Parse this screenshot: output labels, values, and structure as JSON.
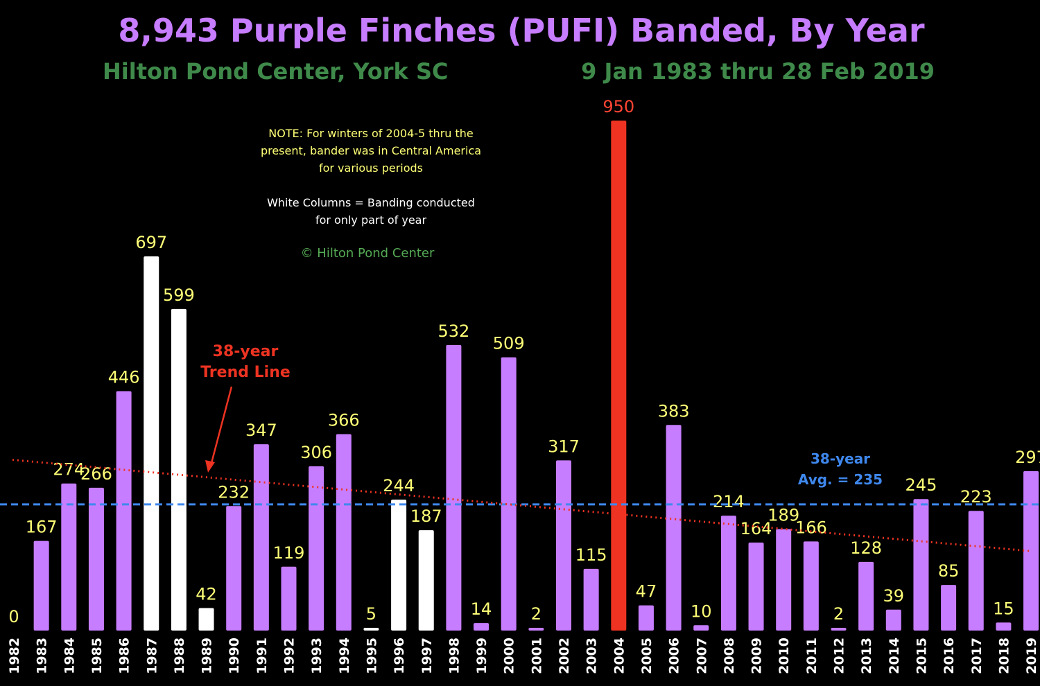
{
  "title": "8,943 Purple Finches (PUFI) Banded, By Year",
  "subtitle_left": "Hilton Pond Center, York SC",
  "subtitle_right": "9 Jan 1983 thru 28 Feb 2019",
  "note_lines": [
    "NOTE: For winters of 2004-5 thru the",
    "present, bander was in Central America",
    "for various periods",
    "",
    "White Columns = Banding conducted",
    "for only part of year"
  ],
  "copyright": "© Hilton Pond Center",
  "trend_label": [
    "38-year",
    "Trend Line"
  ],
  "avg_label": [
    "38-year",
    "Avg. = 235"
  ],
  "colors": {
    "full_year": "#c77dff",
    "partial_year": "#ffffff",
    "record": "#ee3322",
    "title": "#c77dff",
    "subtitle": "#3f8a4a",
    "value_label": "#ffff77",
    "record_label": "#ff4433",
    "note": "#ffff77",
    "avg": "#3f88ee",
    "trend": "#ee3322"
  },
  "chart_data": {
    "type": "bar",
    "categories": [
      "1982",
      "1983",
      "1984",
      "1985",
      "1986",
      "1987",
      "1988",
      "1989",
      "1990",
      "1991",
      "1992",
      "1993",
      "1994",
      "1995",
      "1996",
      "1997",
      "1998",
      "1999",
      "2000",
      "2001",
      "2002",
      "2003",
      "2004",
      "2005",
      "2006",
      "2007",
      "2008",
      "2009",
      "2010",
      "2011",
      "2012",
      "2013",
      "2014",
      "2015",
      "2016",
      "2017",
      "2018",
      "2019"
    ],
    "values": [
      0,
      167,
      274,
      266,
      446,
      697,
      599,
      42,
      232,
      347,
      119,
      306,
      366,
      5,
      244,
      187,
      532,
      14,
      509,
      2,
      317,
      115,
      950,
      47,
      383,
      10,
      214,
      164,
      189,
      166,
      2,
      128,
      39,
      245,
      85,
      223,
      15,
      297
    ],
    "partial_year": [
      "1987",
      "1988",
      "1989",
      "1995",
      "1996",
      "1997"
    ],
    "record_year": "2004",
    "average": 235,
    "trend": {
      "start": 318,
      "end": 148
    },
    "ylim": [
      0,
      950
    ]
  }
}
